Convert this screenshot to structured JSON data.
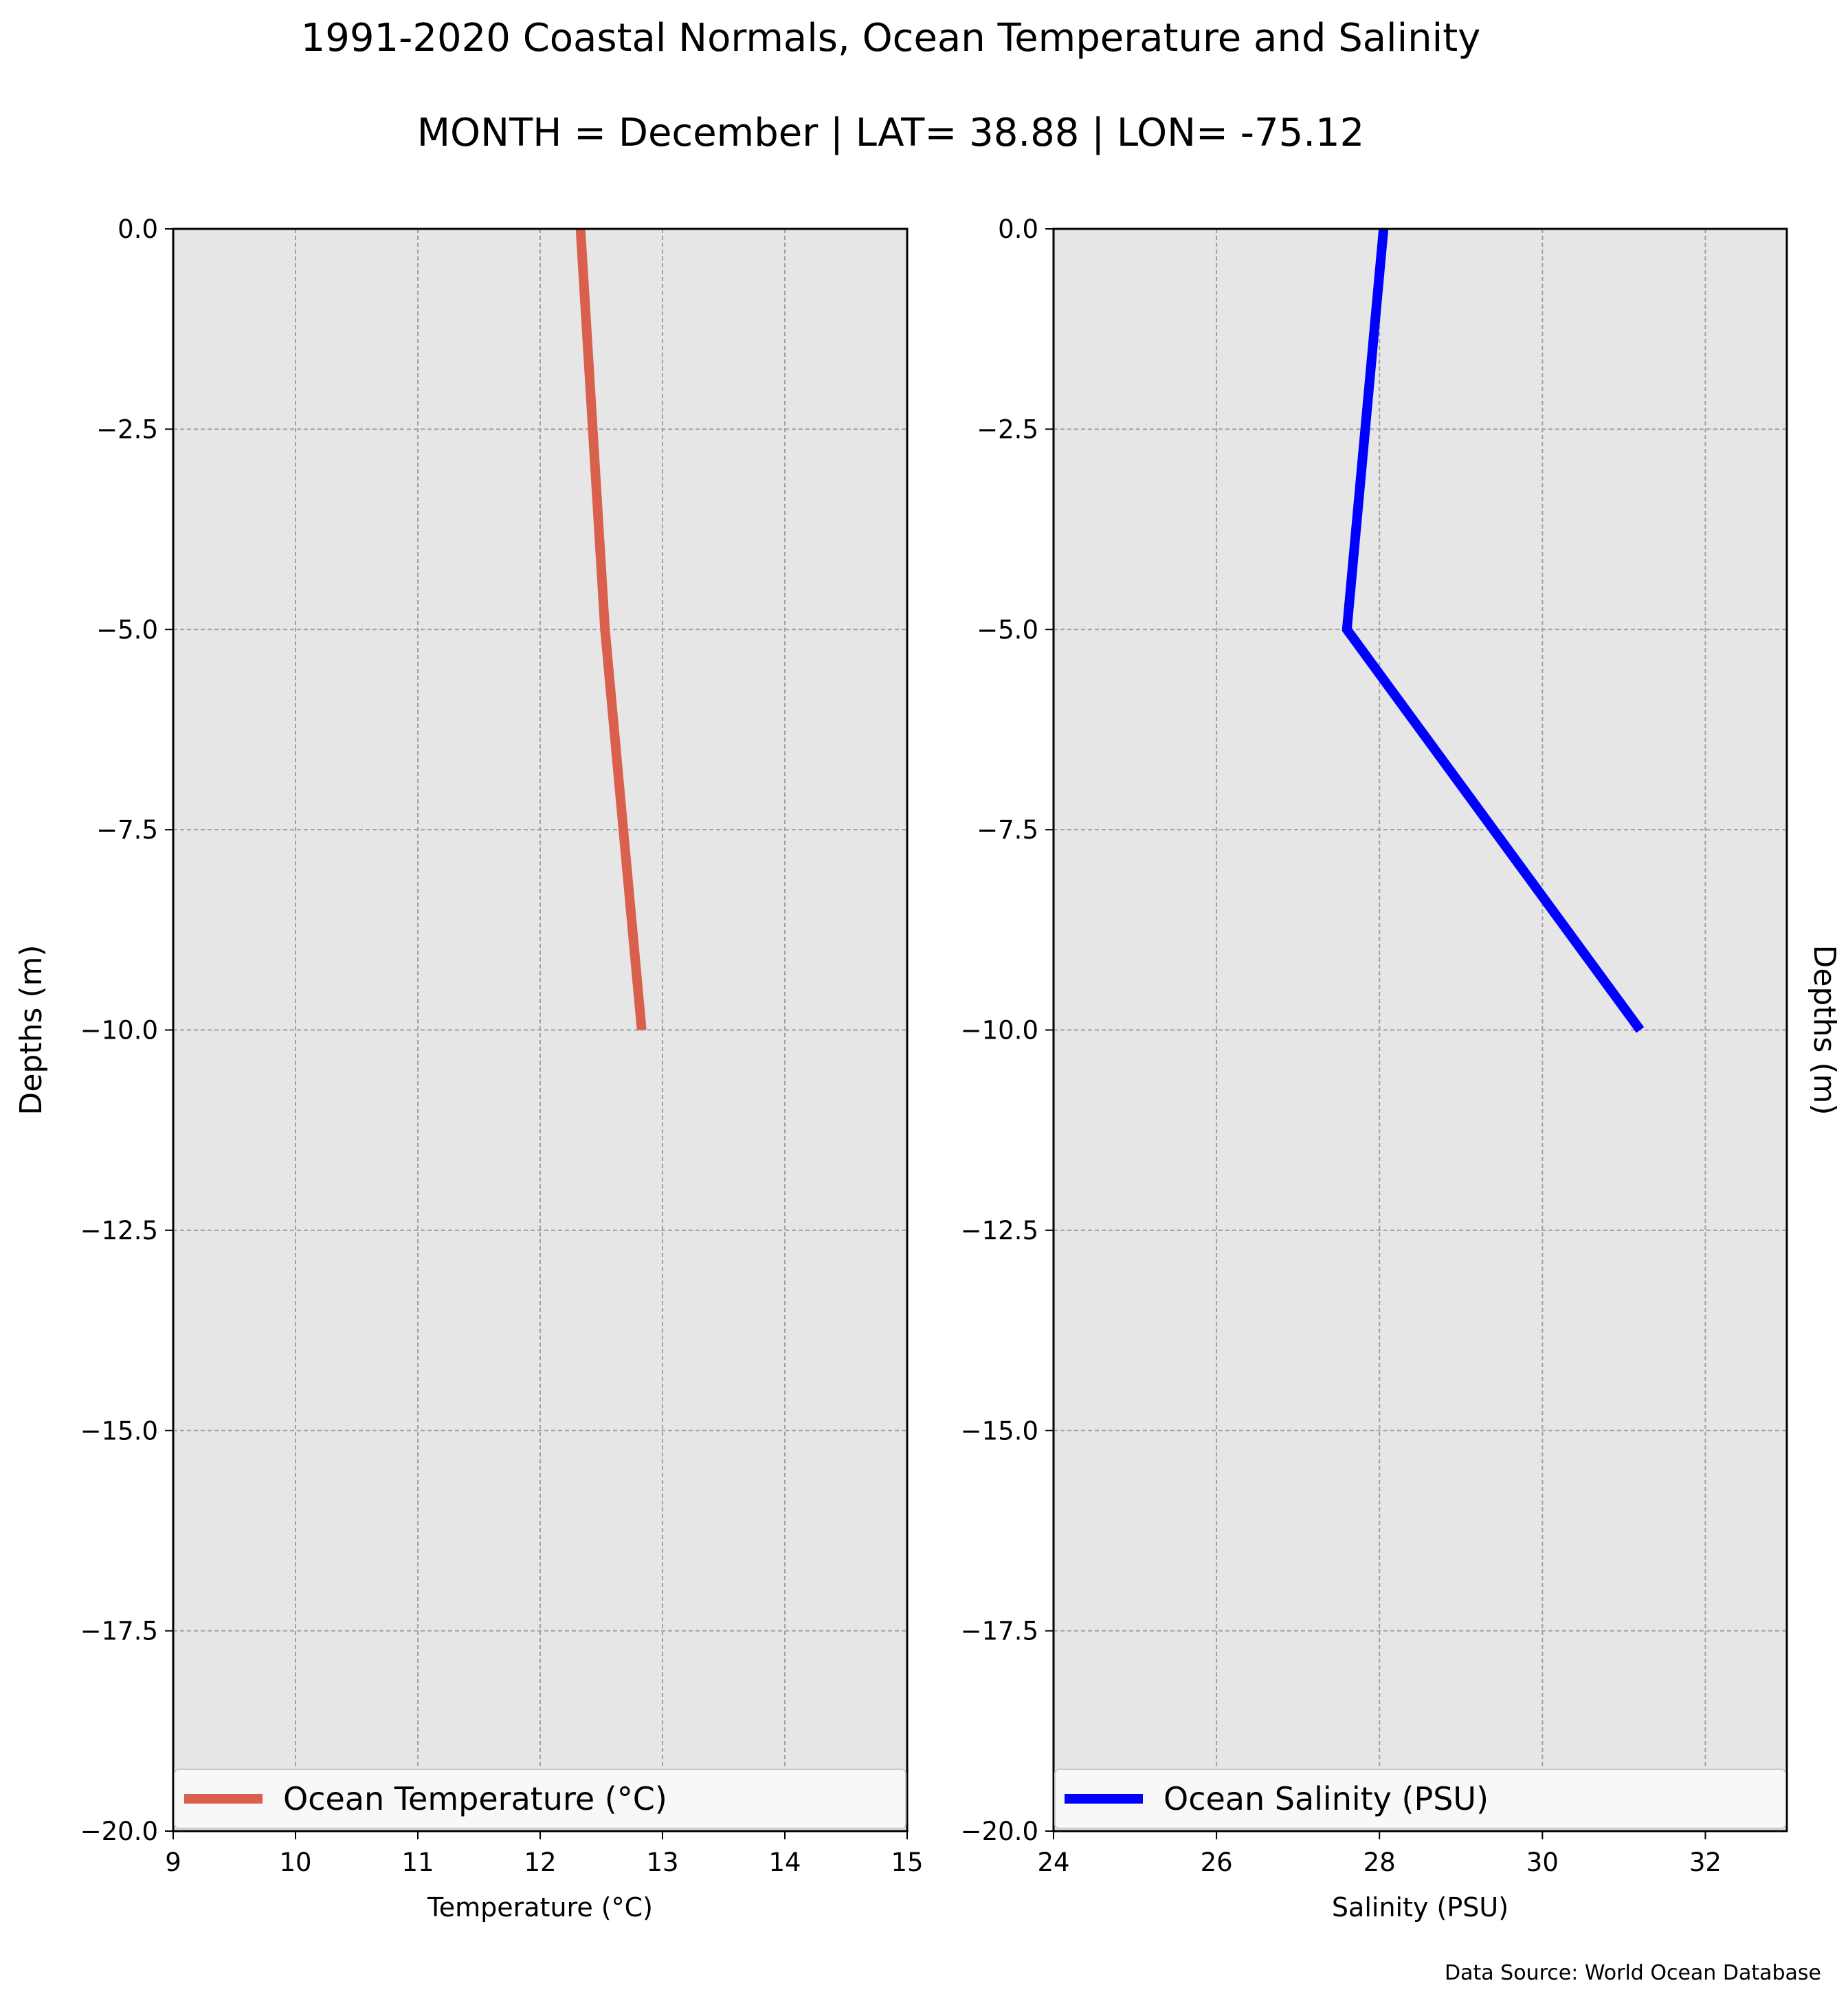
{
  "title": "1991-2020 Coastal Normals, Ocean Temperature and Salinity",
  "subtitle": "MONTH = December | LAT= 38.88 | LON= -75.12",
  "source": "Data Source: World Ocean Database",
  "chart_data": [
    {
      "type": "line",
      "xlabel": "Temperature (°C)",
      "ylabel": "Depths (m)",
      "xlim": [
        9,
        15
      ],
      "ylim": [
        -20,
        0
      ],
      "xticks": [
        "9",
        "10",
        "11",
        "12",
        "13",
        "14",
        "15"
      ],
      "yticks": [
        "0.0",
        "−2.5",
        "−5.0",
        "−7.5",
        "−10.0",
        "−12.5",
        "−15.0",
        "−17.5",
        "−20.0"
      ],
      "grid": true,
      "legend_position": "bottom",
      "series": [
        {
          "name": "Ocean Temperature (°C)",
          "color": "#d9604c",
          "x": [
            12.33,
            12.53,
            12.83
          ],
          "y": [
            0,
            -5,
            -10
          ]
        }
      ]
    },
    {
      "type": "line",
      "xlabel": "Salinity (PSU)",
      "ylabel": "Depths (m)",
      "xlim": [
        24,
        33
      ],
      "ylim": [
        -20,
        0
      ],
      "xticks": [
        "24",
        "26",
        "28",
        "30",
        "32"
      ],
      "yticks": [
        "0.0",
        "−2.5",
        "−5.0",
        "−7.5",
        "−10.0",
        "−12.5",
        "−15.0",
        "−17.5",
        "−20.0"
      ],
      "grid": true,
      "legend_position": "bottom",
      "series": [
        {
          "name": "Ocean Salinity (PSU)",
          "color": "#0000ff",
          "x": [
            28.05,
            27.6,
            31.2
          ],
          "y": [
            0,
            -5,
            -10
          ]
        }
      ]
    }
  ]
}
